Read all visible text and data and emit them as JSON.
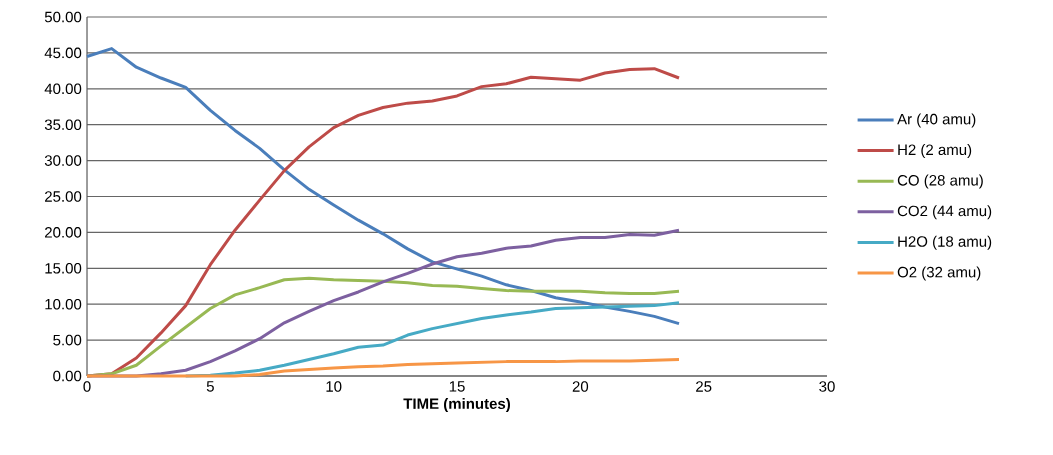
{
  "chart_data": {
    "type": "line",
    "xlabel": "TIME (minutes)",
    "x": [
      0,
      1,
      2,
      3,
      4,
      5,
      6,
      7,
      8,
      9,
      10,
      11,
      12,
      13,
      14,
      15,
      16,
      17,
      18,
      19,
      20,
      21,
      22,
      23,
      24
    ],
    "series": [
      {
        "name": "Ar (40 amu)",
        "color": "#4a7ebb",
        "values": [
          44.5,
          45.6,
          43,
          41.5,
          40.2,
          37,
          34.2,
          31.7,
          28.7,
          26,
          23.8,
          21.7,
          19.8,
          17.7,
          15.9,
          14.9,
          13.9,
          12.7,
          11.9,
          10.9,
          10.3,
          9.6,
          9.0,
          8.3,
          7.3
        ]
      },
      {
        "name": "H2 (2 amu)",
        "color": "#be4b48",
        "values": [
          0,
          0.3,
          2.5,
          6,
          9.8,
          15.5,
          20.3,
          24.5,
          28.6,
          31.9,
          34.6,
          36.3,
          37.4,
          38,
          38.3,
          39,
          40.3,
          40.7,
          41.6,
          41.4,
          41.2,
          42.2,
          42.7,
          42.8,
          41.5
        ]
      },
      {
        "name": "CO (28 amu)",
        "color": "#98b954",
        "values": [
          0,
          0.3,
          1.5,
          4.2,
          6.8,
          9.4,
          11.3,
          12.3,
          13.4,
          13.6,
          13.4,
          13.3,
          13.2,
          13,
          12.6,
          12.5,
          12.2,
          11.9,
          11.8,
          11.8,
          11.8,
          11.6,
          11.5,
          11.5,
          11.8
        ]
      },
      {
        "name": "CO2 (44 amu)",
        "color": "#7d60a0",
        "values": [
          0,
          0,
          0,
          0.3,
          0.8,
          2,
          3.5,
          5.2,
          7.4,
          9,
          10.5,
          11.7,
          13.1,
          14.3,
          15.6,
          16.6,
          17.1,
          17.8,
          18.1,
          18.9,
          19.3,
          19.3,
          19.7,
          19.6,
          20.3
        ]
      },
      {
        "name": "H2O (18 amu)",
        "color": "#46aac5",
        "values": [
          null,
          null,
          null,
          null,
          0,
          0.1,
          0.4,
          0.8,
          1.5,
          2.3,
          3.1,
          4,
          4.3,
          5.7,
          6.6,
          7.3,
          8,
          8.5,
          8.9,
          9.4,
          9.5,
          9.6,
          9.7,
          9.8,
          10.2
        ]
      },
      {
        "name": "O2 (32 amu)",
        "color": "#f79646",
        "values": [
          0,
          0,
          0,
          0,
          0,
          0,
          0,
          0.2,
          0.7,
          0.9,
          1.1,
          1.3,
          1.4,
          1.6,
          1.7,
          1.8,
          1.9,
          2.0,
          2.0,
          2.0,
          2.1,
          2.1,
          2.1,
          2.2,
          2.3
        ]
      }
    ],
    "xlim": [
      0,
      30
    ],
    "xticks": [
      0,
      5,
      10,
      15,
      20,
      25,
      30
    ],
    "ylim": [
      0,
      50
    ],
    "yticks": [
      {
        "value": 0,
        "label": "0.00"
      },
      {
        "value": 5,
        "label": "5.00"
      },
      {
        "value": 10,
        "label": "10.00"
      },
      {
        "value": 15,
        "label": "15.00"
      },
      {
        "value": 20,
        "label": "20.00"
      },
      {
        "value": 25,
        "label": "25.00"
      },
      {
        "value": 30,
        "label": "30.00"
      },
      {
        "value": 35,
        "label": "35.00"
      },
      {
        "value": 40,
        "label": "40.00"
      },
      {
        "value": 45,
        "label": "45.00"
      },
      {
        "value": 50,
        "label": "50.00"
      }
    ],
    "grid": "y",
    "legend": "right",
    "marker": "none",
    "line_style": "solid"
  }
}
